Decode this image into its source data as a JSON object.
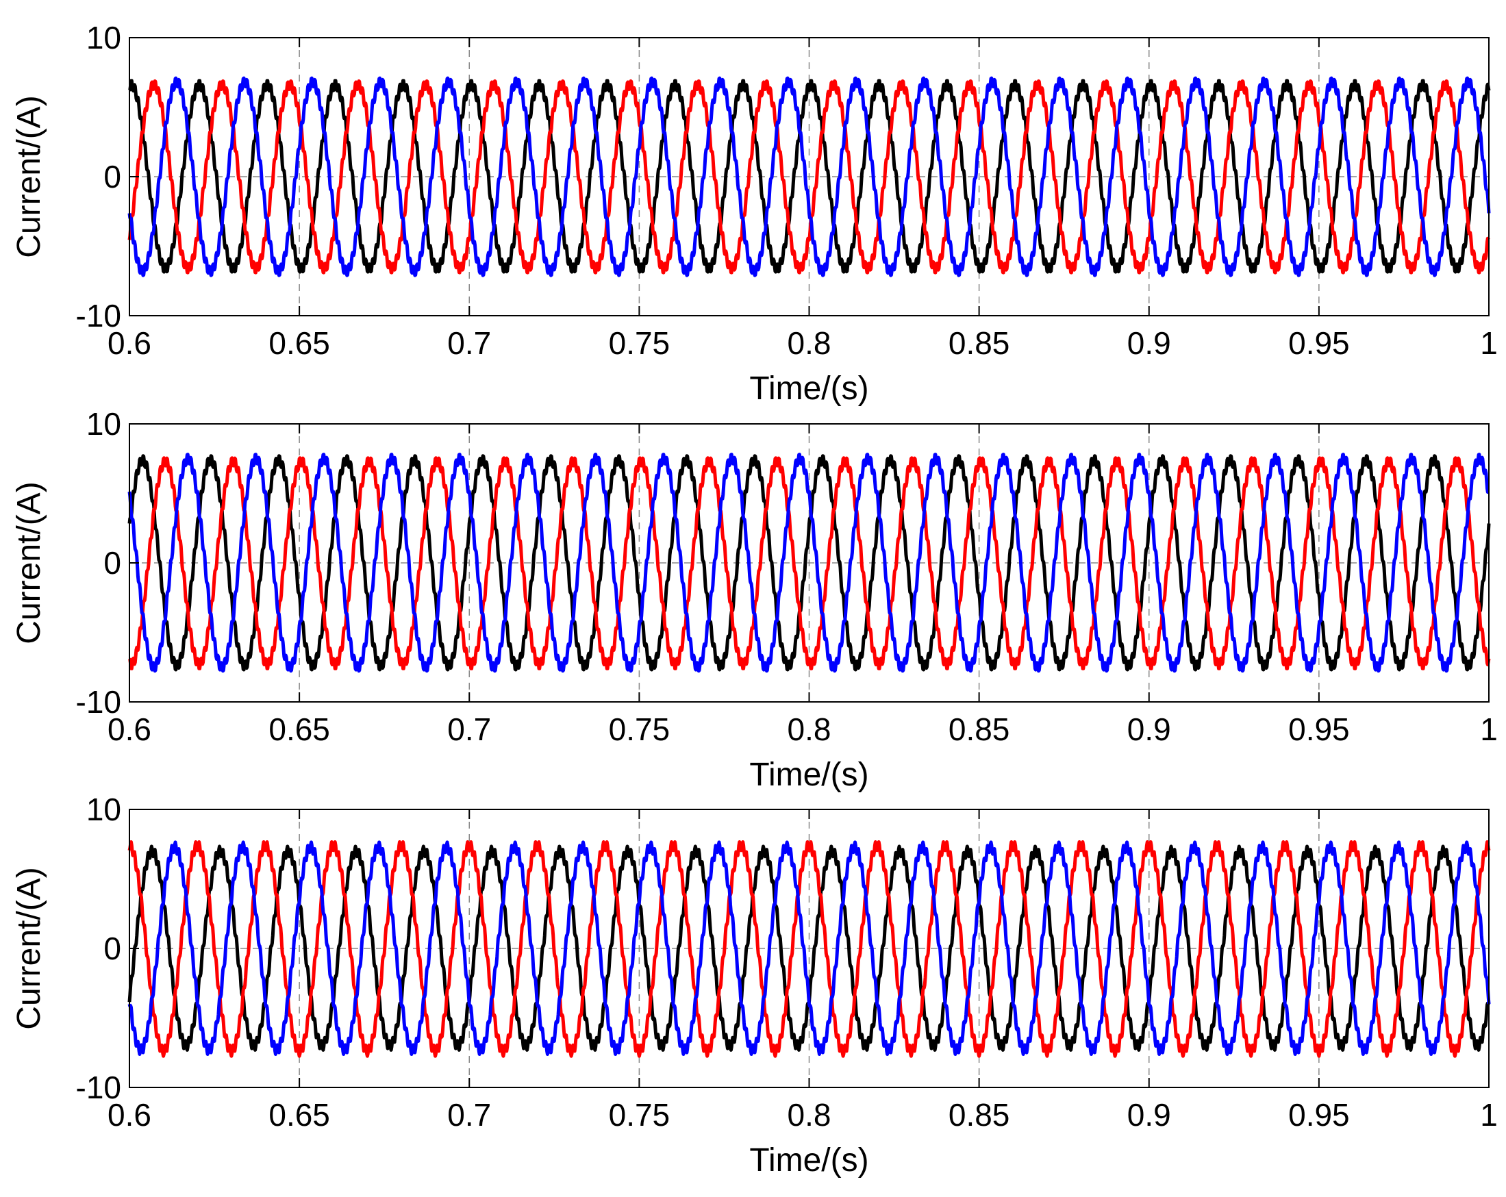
{
  "chart_data": [
    {
      "type": "line",
      "panel": "top",
      "xlabel": "Time/(s)",
      "ylabel": "Current/(A)",
      "xlim": [
        0.6,
        1.0
      ],
      "ylim": [
        -10,
        10
      ],
      "x_ticks": [
        "0.6",
        "0.65",
        "0.7",
        "0.75",
        "0.8",
        "0.85",
        "0.9",
        "0.95",
        "1"
      ],
      "y_ticks": [
        "-10",
        "0",
        "10"
      ],
      "grid": "dashed",
      "frequency_hz": 50,
      "series": [
        {
          "color": "#000000",
          "amplitude": 6.6,
          "phase_deg": 80
        },
        {
          "color": "#ff0000",
          "amplitude": 6.6,
          "phase_deg": -40
        },
        {
          "color": "#0000ff",
          "amplitude": 6.8,
          "phase_deg": 200
        }
      ]
    },
    {
      "type": "line",
      "panel": "middle",
      "xlabel": "Time/(s)",
      "ylabel": "Current/(A)",
      "xlim": [
        0.6,
        1.0
      ],
      "ylim": [
        -10,
        10
      ],
      "x_ticks": [
        "0.6",
        "0.65",
        "0.7",
        "0.75",
        "0.8",
        "0.85",
        "0.9",
        "0.95",
        "1"
      ],
      "y_ticks": [
        "-10",
        "0",
        "10"
      ],
      "grid": "dashed",
      "frequency_hz": 50,
      "series": [
        {
          "color": "#000000",
          "amplitude": 7.4,
          "phase_deg": 20
        },
        {
          "color": "#ff0000",
          "amplitude": 7.3,
          "phase_deg": -100
        },
        {
          "color": "#0000ff",
          "amplitude": 7.5,
          "phase_deg": 140
        }
      ]
    },
    {
      "type": "line",
      "panel": "bottom",
      "xlabel": "Time/(s)",
      "ylabel": "Current/(A)",
      "xlim": [
        0.6,
        1.0
      ],
      "ylim": [
        -10,
        10
      ],
      "x_ticks": [
        "0.6",
        "0.65",
        "0.7",
        "0.75",
        "0.8",
        "0.85",
        "0.9",
        "0.95",
        "1"
      ],
      "y_ticks": [
        "-10",
        "0",
        "10"
      ],
      "grid": "dashed",
      "frequency_hz": 50,
      "series": [
        {
          "color": "#000000",
          "amplitude": 7.0,
          "phase_deg": -30
        },
        {
          "color": "#ff0000",
          "amplitude": 7.4,
          "phase_deg": 90
        },
        {
          "color": "#0000ff",
          "amplitude": 7.3,
          "phase_deg": 210
        }
      ]
    }
  ]
}
